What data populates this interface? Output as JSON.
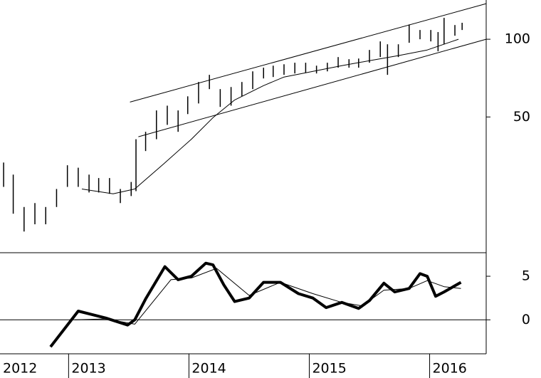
{
  "chart_data": [
    {
      "type": "hilo",
      "log_y": true,
      "color": "#000000",
      "x": [
        2012.46,
        2012.54,
        2012.63,
        2012.72,
        2012.81,
        2012.9,
        2012.99,
        2013.08,
        2013.17,
        2013.25,
        2013.34,
        2013.43,
        2013.52,
        2013.56,
        2013.64,
        2013.73,
        2013.82,
        2013.91,
        2013.99,
        2014.08,
        2014.17,
        2014.26,
        2014.35,
        2014.44,
        2014.53,
        2014.62,
        2014.7,
        2014.79,
        2014.88,
        2014.97,
        2015.06,
        2015.15,
        2015.24,
        2015.33,
        2015.41,
        2015.5,
        2015.59,
        2015.65,
        2015.74,
        2015.83,
        2015.92,
        2016.01,
        2016.07,
        2016.12,
        2016.21,
        2016.27
      ],
      "high": [
        33.3,
        29.9,
        22.4,
        23.2,
        22.4,
        26.3,
        32.5,
        31.8,
        29.9,
        29.0,
        29.0,
        26.3,
        28.0,
        41.0,
        43.8,
        53.0,
        55.3,
        53.0,
        60.1,
        68.3,
        72.8,
        64.1,
        65.3,
        68.3,
        75.1,
        77.6,
        79.0,
        80.0,
        81.1,
        81.1,
        79.0,
        81.1,
        85.3,
        83.7,
        84.2,
        90.9,
        98.1,
        95.6,
        95.6,
        114.1,
        108.6,
        108.6,
        106.6,
        121.0,
        113.5,
        115.8
      ],
      "low": [
        26.8,
        21.1,
        18.0,
        19.2,
        19.2,
        22.4,
        26.8,
        26.8,
        25.5,
        25.5,
        25.2,
        23.2,
        24.7,
        25.8,
        36.9,
        41.0,
        46.6,
        43.8,
        51.3,
        56.4,
        64.1,
        54.7,
        55.3,
        60.1,
        64.1,
        70.5,
        71.4,
        72.8,
        73.7,
        74.2,
        73.7,
        75.1,
        77.6,
        77.6,
        77.6,
        81.1,
        85.3,
        72.8,
        85.3,
        96.9,
        100,
        98.1,
        89.8,
        95.6,
        103.2,
        108.6
      ],
      "ma": {
        "x": [
          2013.11,
          2013.37,
          2013.55,
          2013.79,
          2014.02,
          2014.2,
          2014.38,
          2014.62,
          2014.79,
          2015.03,
          2015.27,
          2015.5,
          2015.74,
          2015.98,
          2016.24
        ],
        "values": [
          26.3,
          25.2,
          26.3,
          32.9,
          41.0,
          49.7,
          58.2,
          66.1,
          71.4,
          75.1,
          79.0,
          82.6,
          86.4,
          90.9,
          100
        ]
      },
      "trendlines": [
        {
          "x": [
            2013.51,
            2016.47
          ],
          "values": [
            57.1,
            137.4
          ]
        },
        {
          "x": [
            2013.58,
            2016.47
          ],
          "values": [
            41.9,
            100
          ]
        }
      ],
      "xlim": [
        2012.43,
        2016.47
      ],
      "ylim": [
        14.9,
        141.9
      ],
      "yticks": [
        50,
        100
      ]
    },
    {
      "type": "line",
      "zero_line": true,
      "series": [
        {
          "color": "#000000",
          "width": 4,
          "x": [
            2012.85,
            2013.08,
            2013.31,
            2013.49,
            2013.55,
            2013.64,
            2013.8,
            2013.91,
            2014.02,
            2014.14,
            2014.2,
            2014.29,
            2014.38,
            2014.5,
            2014.62,
            2014.76,
            2014.91,
            2015.03,
            2015.14,
            2015.27,
            2015.41,
            2015.5,
            2015.62,
            2015.71,
            2015.83,
            2015.92,
            2015.98,
            2016.05,
            2016.12,
            2016.26
          ],
          "values": [
            -3.1,
            1.0,
            0.2,
            -0.6,
            0,
            2.4,
            6.1,
            4.6,
            5.0,
            6.5,
            6.3,
            4.0,
            2.1,
            2.5,
            4.3,
            4.3,
            3.0,
            2.5,
            1.4,
            2.0,
            1.3,
            2.2,
            4.2,
            3.2,
            3.6,
            5.3,
            5.0,
            2.7,
            3.2,
            4.3
          ]
        },
        {
          "color": "#000000",
          "width": 1,
          "x": [
            2013.05,
            2013.31,
            2013.55,
            2013.85,
            2014.02,
            2014.23,
            2014.5,
            2014.76,
            2015.03,
            2015.27,
            2015.44,
            2015.62,
            2015.83,
            2015.98,
            2016.12,
            2016.26
          ],
          "values": [
            0,
            0.1,
            -0.5,
            4.6,
            4.8,
            5.9,
            2.8,
            4.3,
            3.0,
            2.0,
            1.6,
            3.4,
            3.6,
            4.5,
            3.8,
            3.6
          ]
        }
      ],
      "xlim": [
        2012.43,
        2016.47
      ],
      "ylim": [
        -3.9,
        7.7
      ],
      "yticks": [
        0,
        5
      ],
      "xticks": [
        2012,
        2013,
        2014,
        2015,
        2016
      ]
    }
  ]
}
